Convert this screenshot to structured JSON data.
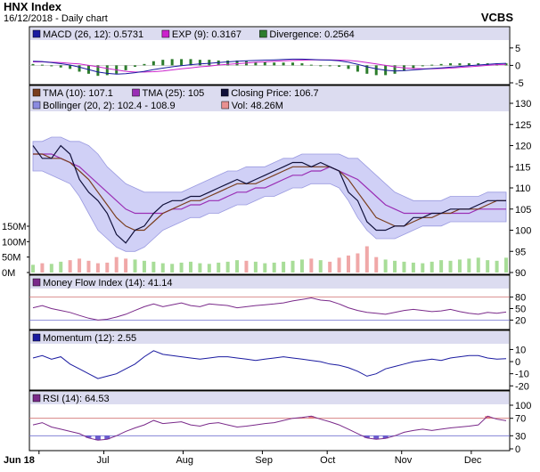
{
  "header": {
    "title": "HNX Index",
    "subtitle": "16/12/2018 - Daily chart",
    "brand": "VCBS"
  },
  "x_axis": {
    "labels": [
      "Jun 18",
      "Jul",
      "Aug",
      "Sep",
      "Oct",
      "Nov",
      "Dec"
    ]
  },
  "panels": {
    "macd": {
      "legend": [
        {
          "text": "MACD (26, 12): 0.5731",
          "color": "#1a1aa0"
        },
        {
          "text": "EXP (9): 0.3167",
          "color": "#cc22cc"
        },
        {
          "text": "Divergence: 0.2564",
          "color": "#2d7d2d"
        }
      ],
      "ticks": [
        "5",
        "0",
        "-5"
      ]
    },
    "price": {
      "legend": [
        {
          "text": "TMA (10): 107.1",
          "color": "#7a3e1e"
        },
        {
          "text": "TMA (25): 105",
          "color": "#9a2fb5"
        },
        {
          "text": "Closing Price: 106.7",
          "color": "#10103a"
        },
        {
          "text": "Bollinger (20, 2): 102.4 - 108.9",
          "color": "#8a8ae0"
        },
        {
          "text": "Vol: 48.26M",
          "color": "#e89090"
        }
      ],
      "ticks": [
        "130",
        "125",
        "120",
        "115",
        "110",
        "105",
        "100",
        "95",
        "90"
      ],
      "vol_ticks": [
        "150M",
        "100M",
        "50M",
        "0M"
      ]
    },
    "mfi": {
      "legend": [
        {
          "text": "Money Flow Index (14): 41.14",
          "color": "#7a2a8a"
        }
      ],
      "ticks": [
        "80",
        "50",
        "20"
      ]
    },
    "momentum": {
      "legend": [
        {
          "text": "Momentum (12): 2.55",
          "color": "#1a1aa0"
        }
      ],
      "ticks": [
        "10",
        "0",
        "-10",
        "-20"
      ]
    },
    "rsi": {
      "legend": [
        {
          "text": "RSI (14): 64.53",
          "color": "#7a2a8a"
        }
      ],
      "ticks": [
        "100",
        "70",
        "30",
        "0"
      ]
    }
  },
  "chart_data": {
    "type": "line",
    "title": "HNX Index",
    "x_labels": [
      "Jun 18",
      "Jul",
      "Aug",
      "Sep",
      "Oct",
      "Nov",
      "Dec"
    ],
    "close": [
      120,
      117,
      117,
      120,
      118,
      112,
      109,
      107,
      104,
      99,
      97,
      100,
      101,
      104,
      106,
      107,
      107,
      108,
      108,
      109,
      110,
      111,
      112,
      111,
      112,
      113,
      114,
      115,
      116,
      116,
      115,
      116,
      115,
      114,
      109,
      107,
      102,
      100,
      100,
      101,
      101,
      103,
      103,
      104,
      104,
      105,
      105,
      105,
      106,
      107,
      107,
      107
    ],
    "tma10": [
      118,
      118,
      117,
      117,
      116,
      114,
      112,
      109,
      106,
      103,
      101,
      100,
      100,
      102,
      104,
      105,
      106,
      107,
      107,
      108,
      109,
      110,
      111,
      111,
      111,
      112,
      113,
      114,
      115,
      115,
      115,
      115,
      115,
      114,
      112,
      109,
      106,
      103,
      102,
      101,
      101,
      102,
      103,
      103,
      104,
      104,
      105,
      105,
      105,
      106,
      107,
      107
    ],
    "tma25": [
      118,
      118,
      118,
      117,
      116,
      115,
      113,
      111,
      109,
      107,
      105,
      104,
      104,
      104,
      104,
      105,
      105,
      106,
      106,
      107,
      107,
      108,
      109,
      109,
      110,
      110,
      111,
      112,
      113,
      113,
      114,
      114,
      115,
      114,
      113,
      112,
      110,
      108,
      106,
      105,
      104,
      104,
      104,
      104,
      104,
      104,
      104,
      104,
      105,
      105,
      105,
      105
    ],
    "bb_upper": [
      121,
      121,
      122,
      122,
      121,
      121,
      120,
      118,
      115,
      113,
      111,
      110,
      109,
      109,
      109,
      109,
      109,
      110,
      111,
      112,
      113,
      114,
      114,
      115,
      115,
      115,
      116,
      117,
      117,
      118,
      118,
      118,
      118,
      118,
      117,
      117,
      115,
      113,
      111,
      109,
      108,
      107,
      107,
      107,
      107,
      108,
      108,
      108,
      108,
      109,
      109,
      109
    ],
    "bb_lower": [
      114,
      114,
      113,
      112,
      111,
      108,
      104,
      100,
      98,
      96,
      95,
      95,
      96,
      98,
      100,
      101,
      102,
      103,
      103,
      104,
      104,
      105,
      106,
      106,
      107,
      108,
      108,
      109,
      110,
      110,
      111,
      111,
      111,
      110,
      107,
      103,
      100,
      98,
      98,
      98,
      99,
      100,
      101,
      101,
      101,
      102,
      102,
      102,
      102,
      102,
      102,
      102
    ],
    "volume_m": [
      25,
      30,
      28,
      35,
      40,
      45,
      38,
      30,
      32,
      50,
      45,
      42,
      38,
      35,
      30,
      28,
      32,
      35,
      30,
      28,
      32,
      35,
      40,
      38,
      35,
      30,
      32,
      35,
      38,
      42,
      45,
      40,
      35,
      48,
      55,
      62,
      85,
      50,
      42,
      38,
      35,
      32,
      30,
      35,
      40,
      38,
      42,
      45,
      48,
      40,
      38,
      48
    ],
    "macd": [
      1.2,
      1.1,
      0.8,
      0.5,
      0.1,
      -0.5,
      -1.2,
      -1.9,
      -2.3,
      -2.5,
      -2.4,
      -2.1,
      -1.7,
      -1.2,
      -0.8,
      -0.4,
      -0.1,
      0.2,
      0.4,
      0.6,
      0.8,
      1.0,
      1.2,
      1.3,
      1.4,
      1.5,
      1.6,
      1.7,
      1.8,
      1.8,
      1.7,
      1.6,
      1.5,
      1.3,
      0.9,
      0.3,
      -0.4,
      -1.0,
      -1.4,
      -1.6,
      -1.5,
      -1.3,
      -1.1,
      -0.9,
      -0.7,
      -0.5,
      -0.3,
      -0.1,
      0.1,
      0.3,
      0.5,
      0.6
    ],
    "macd_signal": [
      1.0,
      1.0,
      0.9,
      0.8,
      0.6,
      0.4,
      0.0,
      -0.4,
      -0.9,
      -1.3,
      -1.7,
      -1.9,
      -1.9,
      -1.8,
      -1.6,
      -1.3,
      -1.0,
      -0.7,
      -0.4,
      -0.2,
      0.1,
      0.3,
      0.5,
      0.7,
      0.9,
      1.0,
      1.2,
      1.3,
      1.4,
      1.5,
      1.6,
      1.6,
      1.6,
      1.5,
      1.4,
      1.2,
      0.8,
      0.4,
      0.0,
      -0.4,
      -0.7,
      -0.9,
      -1.0,
      -1.0,
      -0.9,
      -0.8,
      -0.6,
      -0.4,
      -0.2,
      0.0,
      0.2,
      0.3
    ],
    "mfi": [
      52,
      58,
      50,
      45,
      40,
      32,
      25,
      20,
      22,
      28,
      35,
      45,
      55,
      62,
      55,
      60,
      65,
      58,
      55,
      62,
      60,
      58,
      52,
      55,
      58,
      60,
      62,
      65,
      70,
      74,
      78,
      72,
      70,
      62,
      52,
      45,
      40,
      38,
      35,
      40,
      45,
      48,
      45,
      42,
      44,
      48,
      42,
      38,
      35,
      40,
      38,
      41
    ],
    "momentum": [
      3,
      5,
      2,
      4,
      -2,
      -6,
      -10,
      -14,
      -12,
      -10,
      -6,
      -2,
      4,
      9,
      6,
      5,
      4,
      3,
      2,
      3,
      4,
      4,
      3,
      2,
      1,
      2,
      3,
      4,
      3,
      2,
      1,
      0,
      -2,
      -3,
      -5,
      -8,
      -12,
      -10,
      -6,
      -4,
      -2,
      0,
      1,
      2,
      1,
      3,
      4,
      5,
      5,
      3,
      2,
      2.5
    ],
    "rsi": [
      55,
      60,
      50,
      45,
      40,
      35,
      25,
      20,
      22,
      30,
      40,
      48,
      55,
      65,
      58,
      60,
      62,
      55,
      52,
      58,
      60,
      55,
      50,
      52,
      55,
      58,
      60,
      65,
      70,
      72,
      75,
      68,
      62,
      55,
      45,
      35,
      25,
      22,
      24,
      30,
      38,
      42,
      45,
      42,
      45,
      48,
      50,
      52,
      55,
      75,
      68,
      64.5
    ],
    "ylim": {
      "price": [
        90,
        130
      ],
      "macd": [
        -5,
        7
      ],
      "mfi": [
        0,
        100
      ],
      "momentum": [
        -22,
        14
      ],
      "rsi": [
        0,
        100
      ]
    }
  }
}
